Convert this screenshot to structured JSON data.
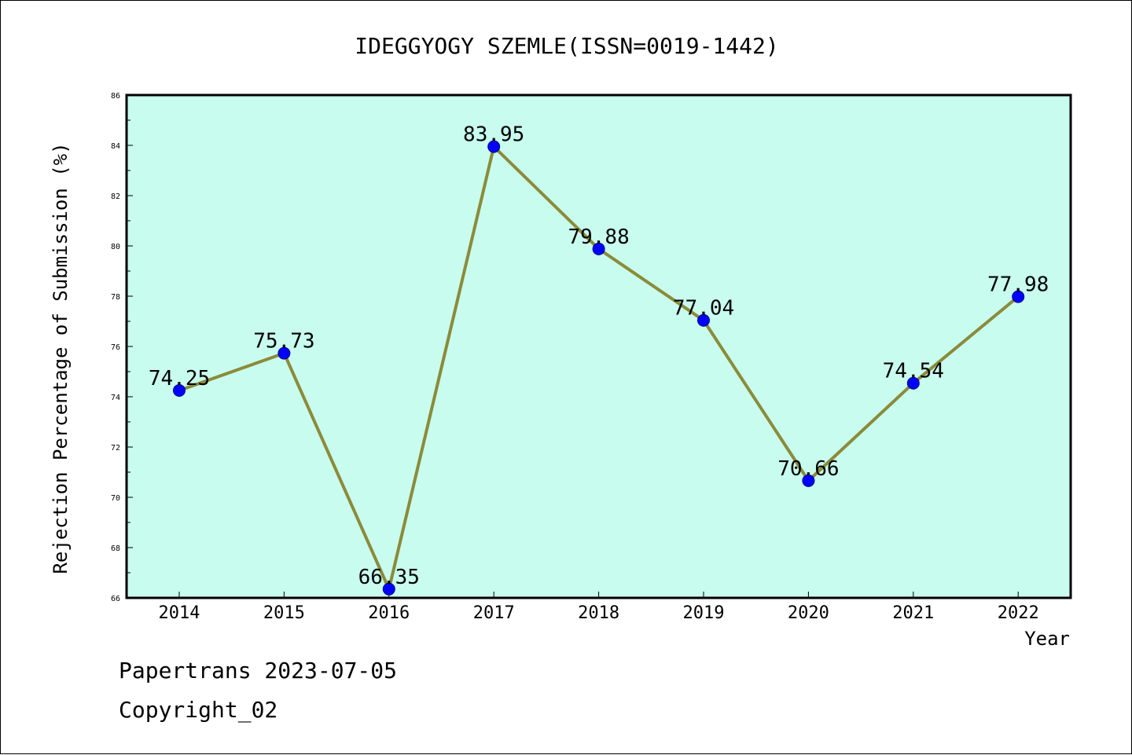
{
  "chart_data": {
    "type": "line",
    "title": "IDEGGYOGY SZEMLE(ISSN=0019-1442)",
    "xlabel": "Year",
    "ylabel": "Rejection Percentage of Submission (%)",
    "x": [
      "2014",
      "2015",
      "2016",
      "2017",
      "2018",
      "2019",
      "2020",
      "2021",
      "2022"
    ],
    "values": [
      74.25,
      75.73,
      66.35,
      83.95,
      79.88,
      77.04,
      70.66,
      74.54,
      77.98
    ],
    "data_labels": [
      "74.25",
      "75.73",
      "66.35",
      "83.95",
      "79.88",
      "77.04",
      "70.66",
      "74.54",
      "77.98"
    ],
    "ylim": [
      66,
      86
    ],
    "yticks": [
      "66",
      "68",
      "70",
      "72",
      "74",
      "76",
      "78",
      "80",
      "82",
      "84",
      "86"
    ],
    "grid": false,
    "legend": "none",
    "colors": {
      "plot_background": "#c8fcee",
      "line": "#8b8b3a",
      "marker": "#0000ff"
    }
  },
  "footer": {
    "line1": "Papertrans 2023-07-05",
    "line2": "Copyright_02"
  }
}
